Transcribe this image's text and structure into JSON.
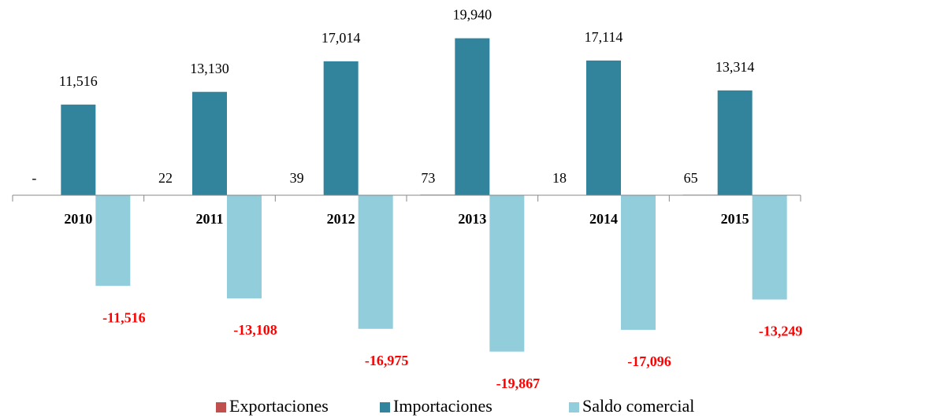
{
  "chart_data": {
    "type": "bar",
    "categories": [
      "2010",
      "2011",
      "2012",
      "2013",
      "2014",
      "2015"
    ],
    "series": [
      {
        "name": "Exportaciones",
        "color": "#c0504d",
        "values": [
          0,
          22,
          39,
          73,
          18,
          65
        ],
        "value_labels": [
          "-",
          "22",
          "39",
          "73",
          "18",
          "65"
        ]
      },
      {
        "name": "Importaciones",
        "color": "#31849b",
        "values": [
          11516,
          13130,
          17014,
          19940,
          17114,
          13314
        ],
        "value_labels": [
          "11,516",
          "13,130",
          "17,014",
          "19,940",
          "17,114",
          "13,314"
        ]
      },
      {
        "name": "Saldo comercial",
        "color": "#92cddc",
        "values": [
          -11516,
          -13108,
          -16975,
          -19867,
          -17096,
          -13249
        ],
        "value_labels": [
          "-11,516",
          "-13,108",
          "-16,975",
          "-19,867",
          "-17,096",
          "-13,249"
        ]
      }
    ],
    "ylim": [
      -23000,
      24000
    ]
  }
}
